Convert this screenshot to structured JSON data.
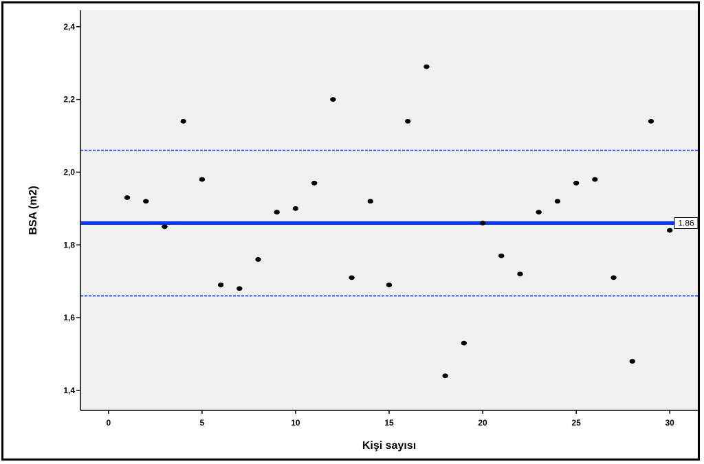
{
  "chart_data": {
    "type": "scatter",
    "title": "",
    "xlabel": "Kişi sayısı",
    "ylabel": "BSA (m2)",
    "xlim": [
      -1.5,
      31.5
    ],
    "ylim": [
      1.345,
      2.445
    ],
    "x_ticks": [
      0,
      5,
      10,
      15,
      20,
      25,
      30
    ],
    "x_tick_labels": [
      "0",
      "5",
      "10",
      "15",
      "20",
      "25",
      "30"
    ],
    "y_ticks": [
      1.4,
      1.6,
      1.8,
      2.0,
      2.2,
      2.4
    ],
    "y_tick_labels": [
      "1,4",
      "1,6",
      "1,8",
      "2,0",
      "2,2",
      "2,4"
    ],
    "grid": false,
    "point_color": "#000000",
    "background_color": "#f0f0f0",
    "series": [
      {
        "x": [
          1,
          2,
          3,
          4,
          5,
          6,
          7,
          8,
          9,
          10,
          11,
          12,
          13,
          14,
          15,
          16,
          17,
          18,
          19,
          20,
          21,
          22,
          23,
          24,
          25,
          26,
          27,
          28,
          29,
          30
        ],
        "y": [
          1.93,
          1.92,
          1.85,
          2.14,
          1.98,
          1.69,
          1.68,
          1.76,
          1.89,
          1.9,
          1.97,
          2.2,
          1.71,
          1.92,
          1.69,
          2.14,
          2.29,
          1.44,
          1.53,
          1.86,
          1.77,
          1.72,
          1.89,
          1.92,
          1.97,
          1.98,
          1.71,
          1.48,
          2.14,
          1.84
        ]
      }
    ],
    "reference_lines": [
      {
        "name": "mean",
        "y": 1.86,
        "style": "solid",
        "color": "#0033ff",
        "label": "1.86"
      },
      {
        "name": "upper",
        "y": 2.06,
        "style": "dotted",
        "color": "#2a55ff"
      },
      {
        "name": "lower",
        "y": 1.66,
        "style": "dotted",
        "color": "#2a55ff"
      }
    ]
  }
}
